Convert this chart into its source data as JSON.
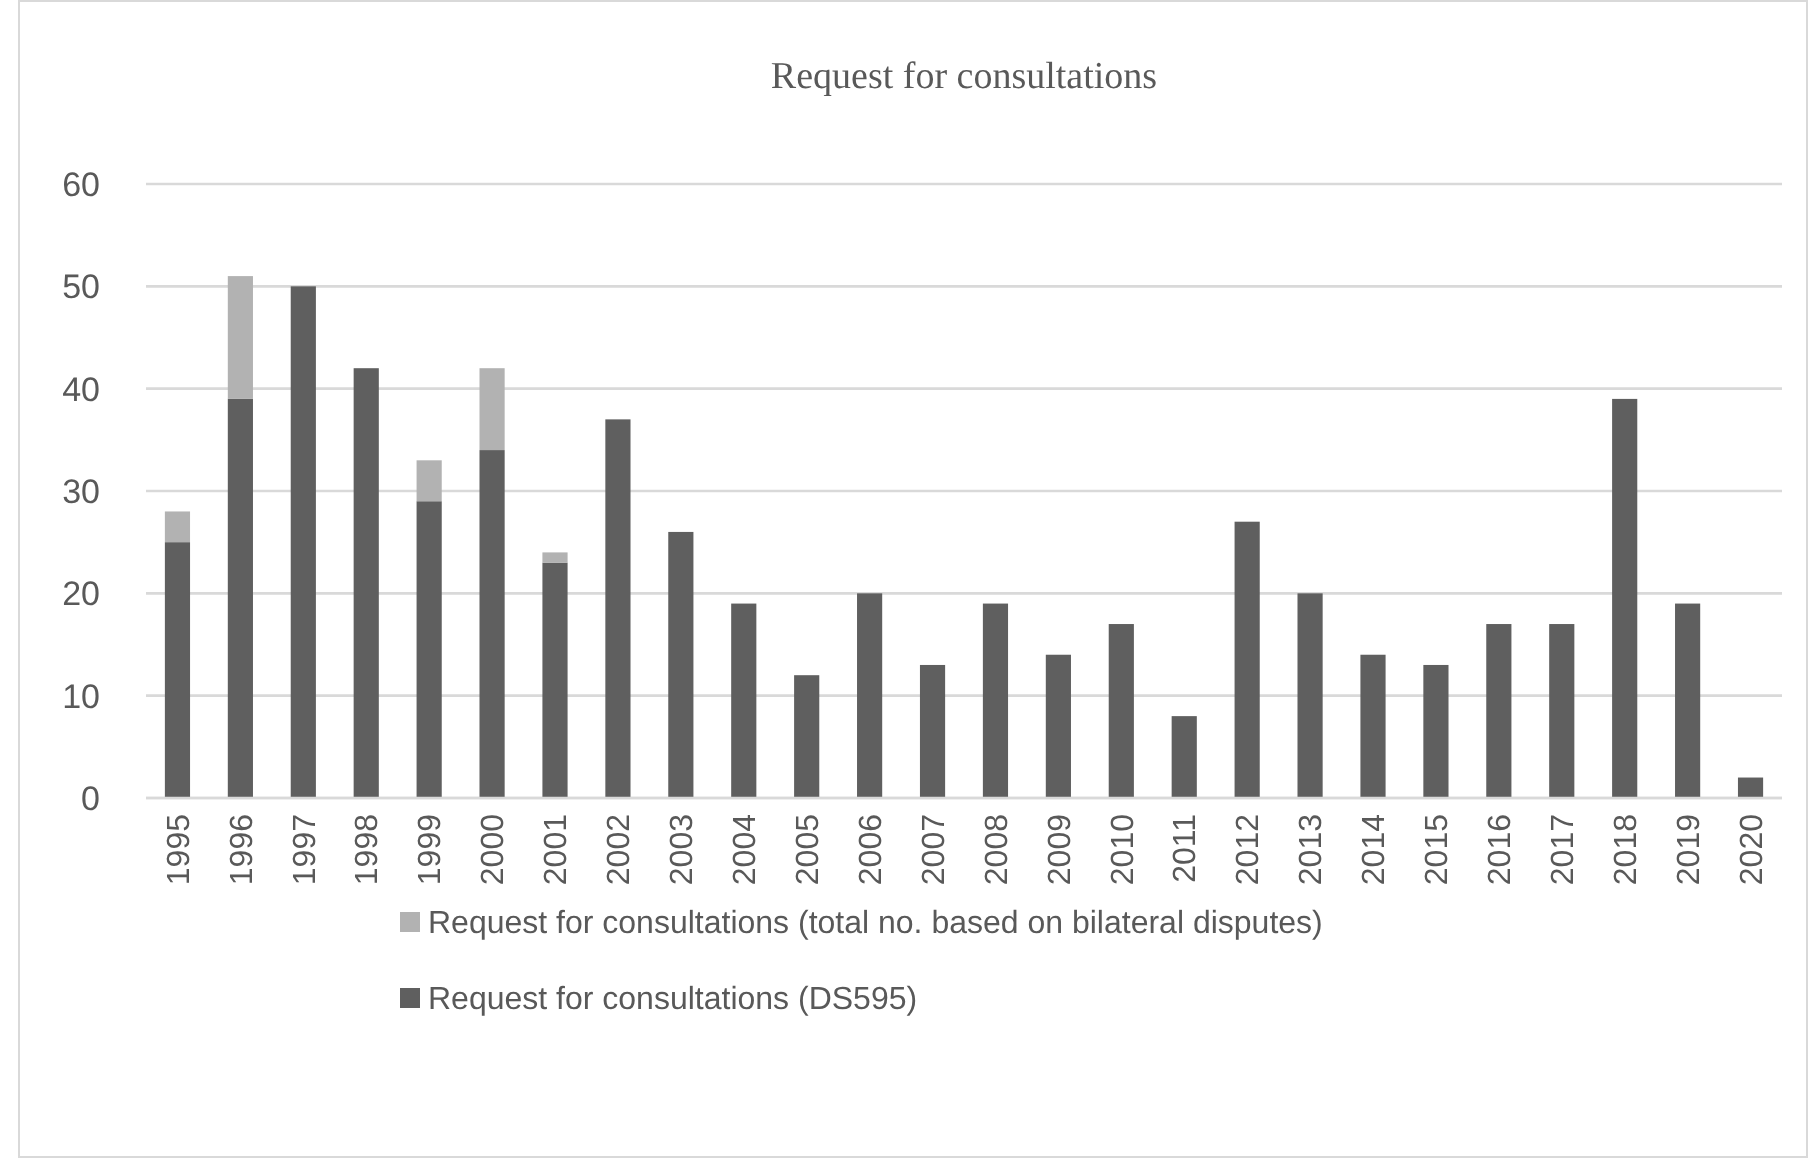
{
  "chart_data": {
    "type": "bar",
    "title": "Request for consultations",
    "stacked": true,
    "legend": "bottom",
    "grid": "y",
    "categories": [
      "1995",
      "1996",
      "1997",
      "1998",
      "1999",
      "2000",
      "2001",
      "2002",
      "2003",
      "2004",
      "2005",
      "2006",
      "2007",
      "2008",
      "2009",
      "2010",
      "2011",
      "2012",
      "2013",
      "2014",
      "2015",
      "2016",
      "2017",
      "2018",
      "2019",
      "2020"
    ],
    "series": [
      {
        "name": "Request for consultations (DS595)",
        "color": "#5f5f5f",
        "values": [
          25,
          39,
          50,
          42,
          29,
          34,
          23,
          37,
          26,
          19,
          12,
          20,
          13,
          19,
          14,
          17,
          8,
          27,
          20,
          14,
          13,
          17,
          17,
          39,
          19,
          2
        ]
      },
      {
        "name": "Request for consultations (total no. based on bilateral disputes)",
        "color": "#b2b2b2",
        "values": [
          3,
          12,
          null,
          null,
          4,
          8,
          1,
          null,
          null,
          null,
          null,
          null,
          null,
          null,
          null,
          null,
          null,
          null,
          null,
          null,
          null,
          null,
          null,
          null,
          null,
          null
        ]
      }
    ],
    "ylim": [
      0,
      60
    ],
    "yticks": [
      0,
      10,
      20,
      30,
      40,
      50,
      60
    ]
  }
}
